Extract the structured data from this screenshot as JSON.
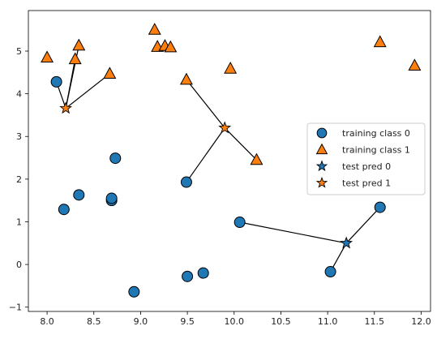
{
  "chart_data": {
    "type": "scatter",
    "title": "",
    "xlabel": "",
    "ylabel": "",
    "xlim": [
      7.8,
      12.1
    ],
    "ylim": [
      -1.1,
      5.95
    ],
    "grid": false,
    "x_ticks": [
      8.0,
      8.5,
      9.0,
      9.5,
      10.0,
      10.5,
      11.0,
      11.5,
      12.0
    ],
    "x_tick_labels": [
      "8.0",
      "8.5",
      "9.0",
      "9.5",
      "10.0",
      "10.5",
      "11.0",
      "11.5",
      "12.0"
    ],
    "y_ticks": [
      -1,
      0,
      1,
      2,
      3,
      4,
      5
    ],
    "y_tick_labels": [
      "−1",
      "0",
      "1",
      "2",
      "3",
      "4",
      "5"
    ],
    "legend_position": "center-right",
    "series": [
      {
        "name": "training class 0",
        "marker": "circle",
        "color": "#1f77b4",
        "points": [
          [
            8.1,
            4.28
          ],
          [
            8.73,
            2.49
          ],
          [
            8.34,
            1.63
          ],
          [
            8.18,
            1.29
          ],
          [
            8.69,
            1.5
          ],
          [
            8.69,
            1.55
          ],
          [
            9.49,
            1.93
          ],
          [
            8.93,
            -0.64
          ],
          [
            9.5,
            -0.28
          ],
          [
            9.67,
            -0.2
          ],
          [
            10.06,
            0.99
          ],
          [
            11.03,
            -0.17
          ],
          [
            11.56,
            1.34
          ]
        ]
      },
      {
        "name": "training class 1",
        "marker": "triangle",
        "color": "#ff7f0e",
        "points": [
          [
            8.0,
            4.85
          ],
          [
            8.3,
            4.81
          ],
          [
            8.34,
            5.13
          ],
          [
            8.67,
            4.47
          ],
          [
            9.15,
            5.5
          ],
          [
            9.18,
            5.1
          ],
          [
            9.26,
            5.12
          ],
          [
            9.32,
            5.09
          ],
          [
            9.49,
            4.33
          ],
          [
            9.96,
            4.59
          ],
          [
            10.24,
            2.45
          ],
          [
            11.56,
            5.21
          ],
          [
            11.93,
            4.66
          ]
        ]
      },
      {
        "name": "test pred 0",
        "marker": "star",
        "color": "#1f77b4",
        "points": [
          [
            11.2,
            0.5
          ]
        ]
      },
      {
        "name": "test pred 1",
        "marker": "star",
        "color": "#ff7f0e",
        "points": [
          [
            8.2,
            3.66
          ],
          [
            9.9,
            3.2
          ]
        ]
      }
    ],
    "neighbor_links": [
      {
        "from": [
          8.2,
          3.66
        ],
        "to": [
          8.1,
          4.28
        ]
      },
      {
        "from": [
          8.2,
          3.66
        ],
        "to": [
          8.3,
          4.81
        ]
      },
      {
        "from": [
          8.2,
          3.66
        ],
        "to": [
          8.34,
          5.13
        ]
      },
      {
        "from": [
          8.2,
          3.66
        ],
        "to": [
          8.67,
          4.47
        ]
      },
      {
        "from": [
          9.9,
          3.2
        ],
        "to": [
          9.49,
          4.33
        ]
      },
      {
        "from": [
          9.9,
          3.2
        ],
        "to": [
          10.24,
          2.45
        ]
      },
      {
        "from": [
          9.9,
          3.2
        ],
        "to": [
          9.49,
          1.93
        ]
      },
      {
        "from": [
          11.2,
          0.5
        ],
        "to": [
          10.06,
          0.99
        ]
      },
      {
        "from": [
          11.2,
          0.5
        ],
        "to": [
          11.03,
          -0.17
        ]
      },
      {
        "from": [
          11.2,
          0.5
        ],
        "to": [
          11.56,
          1.34
        ]
      }
    ]
  }
}
